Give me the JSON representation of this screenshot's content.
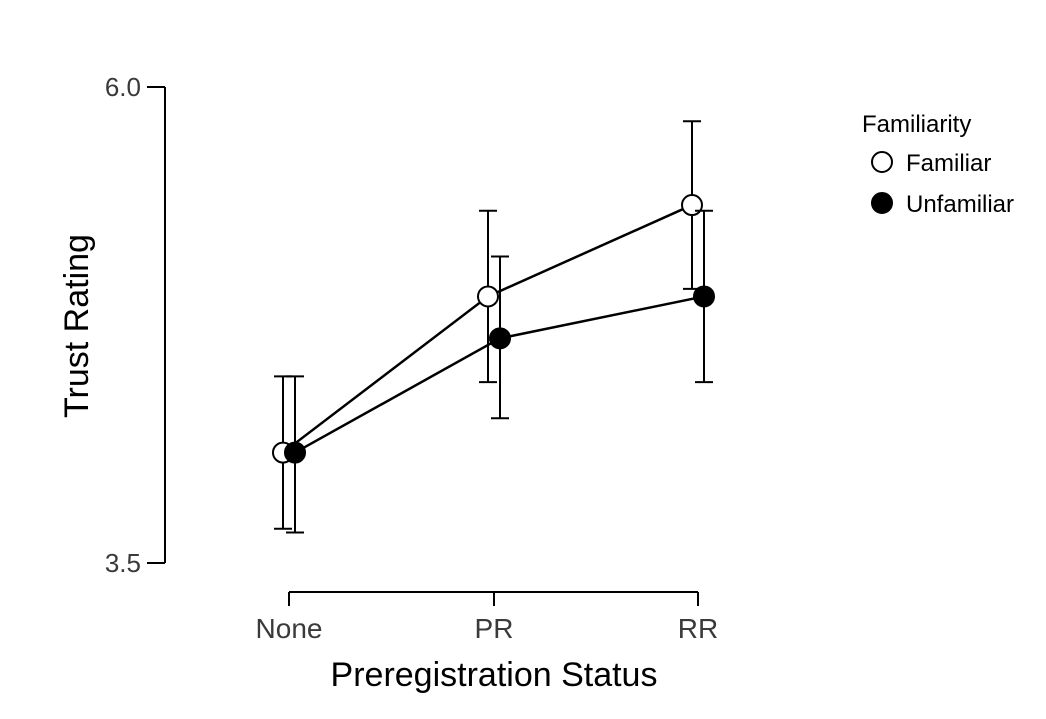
{
  "chart_data": {
    "type": "line",
    "title": "",
    "xlabel": "Preregistration Status",
    "ylabel": "Trust Rating",
    "categories": [
      "None",
      "PR",
      "RR"
    ],
    "ylim": [
      3.5,
      6.0
    ],
    "yticks": [
      "3.5",
      "6.0"
    ],
    "grid": false,
    "legend": {
      "title": "Familiarity",
      "position": "top-right"
    },
    "series": [
      {
        "name": "Familiar",
        "marker": "open-circle",
        "color": "#000000",
        "values": [
          4.08,
          4.9,
          5.38
        ],
        "error_low": [
          3.68,
          4.45,
          4.94
        ],
        "error_high": [
          4.48,
          5.35,
          5.82
        ]
      },
      {
        "name": "Unfamiliar",
        "marker": "filled-circle",
        "color": "#000000",
        "values": [
          4.08,
          4.68,
          4.9
        ],
        "error_low": [
          3.66,
          4.26,
          4.45
        ],
        "error_high": [
          4.48,
          5.11,
          5.35
        ]
      }
    ]
  }
}
